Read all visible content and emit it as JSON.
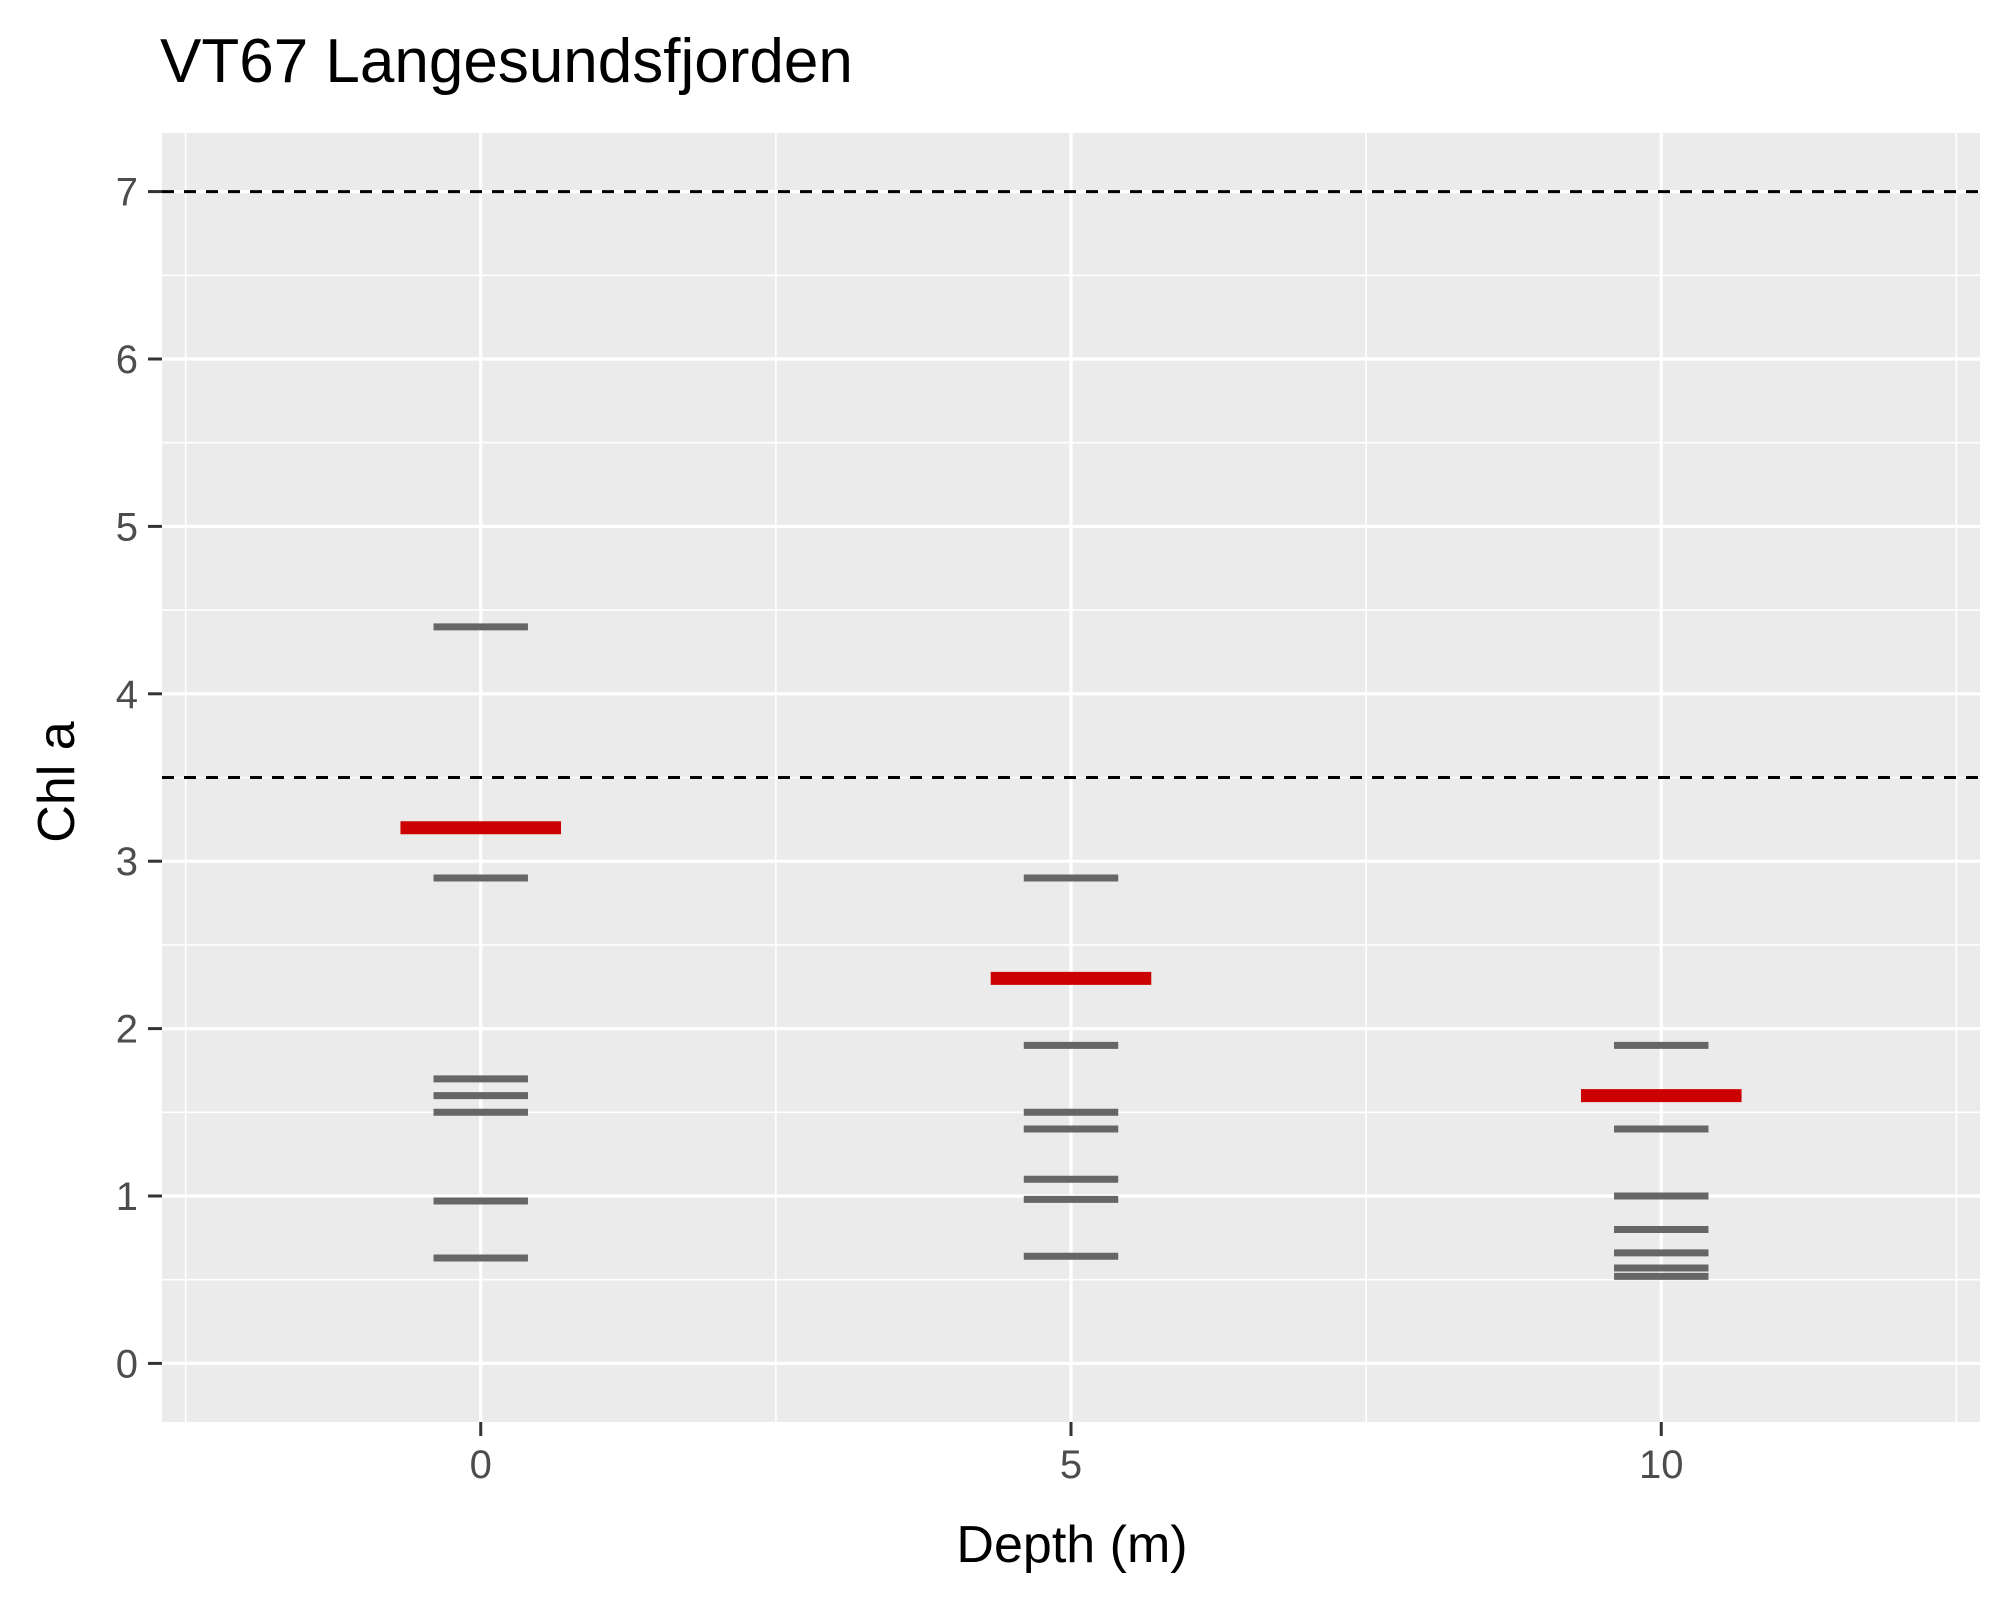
{
  "chart_data": {
    "type": "scatter",
    "title": "VT67 Langesundsfjorden",
    "xlabel": "Depth (m)",
    "ylabel": "Chl a",
    "xlim": [
      -2.7,
      12.7
    ],
    "ylim": [
      -0.35,
      7.35
    ],
    "x_ticks": [
      0,
      5,
      10
    ],
    "y_ticks": [
      0,
      1,
      2,
      3,
      4,
      5,
      6,
      7
    ],
    "grid": true,
    "background_color": "#ebebeb",
    "observation_color": "#666666",
    "mean_color": "#cc0000",
    "reference_line_color": "#000000",
    "reference_lines": [
      3.5,
      7
    ],
    "observations": [
      {
        "depth": 0,
        "values": [
          4.4,
          2.9,
          1.7,
          1.6,
          1.5,
          0.97,
          0.63
        ]
      },
      {
        "depth": 5,
        "values": [
          2.9,
          1.9,
          1.5,
          1.4,
          1.1,
          0.98,
          0.64
        ]
      },
      {
        "depth": 10,
        "values": [
          1.9,
          1.4,
          1.0,
          0.8,
          0.66,
          0.57,
          0.52
        ]
      }
    ],
    "means": [
      {
        "depth": 0,
        "value": 3.2
      },
      {
        "depth": 5,
        "value": 2.3
      },
      {
        "depth": 10,
        "value": 1.6
      }
    ]
  }
}
